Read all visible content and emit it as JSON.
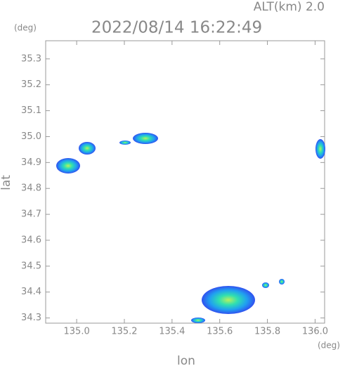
{
  "chart_data": {
    "type": "map",
    "title": "2022/08/14 16:22:49",
    "subtitle": "ALT(km) 2.0",
    "x_label": "lon",
    "x_unit": "(deg)",
    "y_label": "lat",
    "y_unit": "(deg)",
    "xlim": [
      134.87,
      136.04
    ],
    "ylim": [
      34.28,
      35.37
    ],
    "xticks": [
      {
        "value": 135,
        "label": "135.0"
      },
      135.2,
      135.4,
      135.6,
      135.8,
      {
        "value": 136,
        "label": "136.0"
      }
    ],
    "yticks": [
      {
        "value": 34.3,
        "label": "34.3"
      },
      34.4,
      34.5,
      34.6,
      34.7,
      34.8,
      34.9,
      {
        "value": 35,
        "label": "35.0"
      },
      35.1,
      35.2,
      35.3
    ]
  }
}
